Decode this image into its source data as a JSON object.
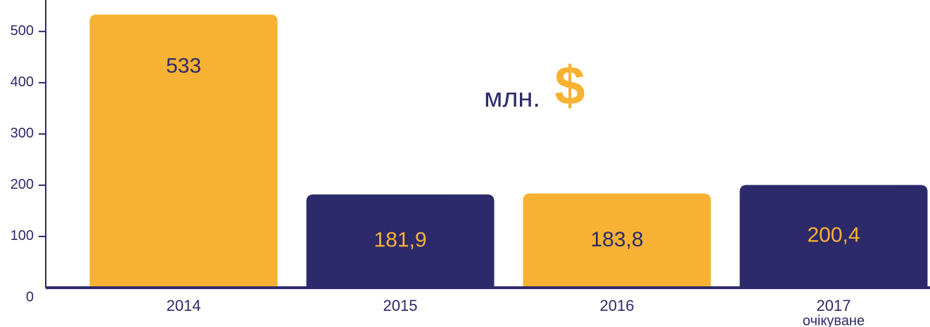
{
  "chart_data": {
    "type": "bar",
    "categories": [
      "2014",
      "2015",
      "2016",
      "2017"
    ],
    "category_note": "очікуване",
    "values": [
      533,
      181.9,
      183.8,
      200.4
    ],
    "value_labels": [
      "533",
      "181,9",
      "183,8",
      "200,4"
    ],
    "colors": [
      "#f7b233",
      "#2d2a6b",
      "#f7b233",
      "#2d2a6b"
    ],
    "label_colors": [
      "#2d2a6b",
      "#f7b233",
      "#2d2a6b",
      "#f7b233"
    ],
    "annotation": "млн.",
    "currency": "$",
    "ylim": [
      0,
      560
    ],
    "yticks": [
      0,
      100,
      200,
      300,
      400,
      500
    ]
  }
}
